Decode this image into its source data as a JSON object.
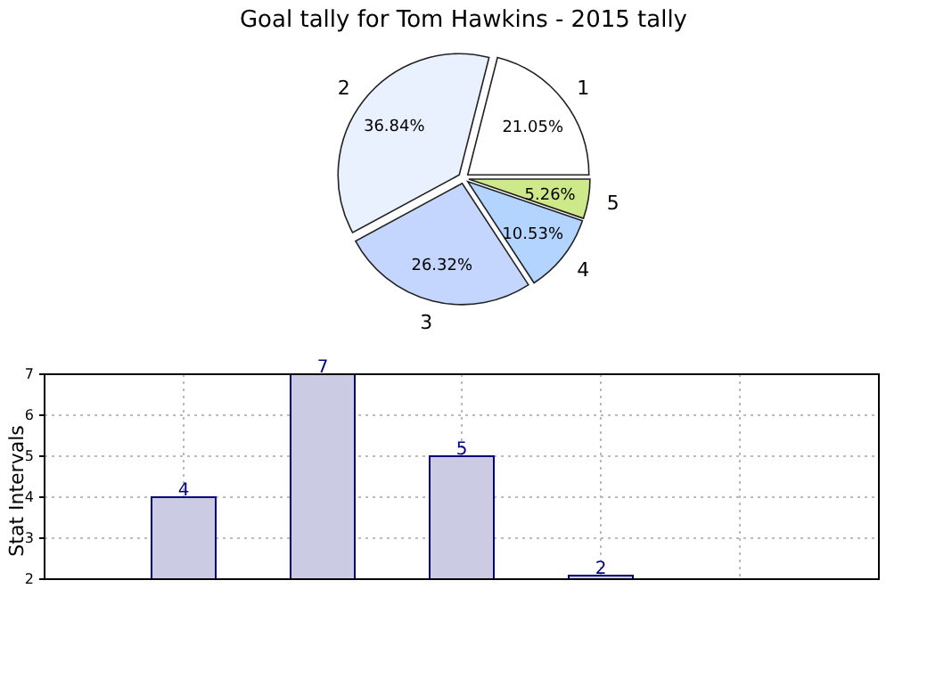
{
  "chart_data": [
    {
      "type": "pie",
      "title": "Goal tally for Tom Hawkins - 2015 tally",
      "categories": [
        "1",
        "2",
        "3",
        "4",
        "5"
      ],
      "values": [
        21.05,
        36.84,
        26.32,
        10.53,
        5.26
      ],
      "value_labels": [
        "21.05%",
        "36.84%",
        "26.32%",
        "10.53%",
        "5.26%"
      ],
      "colors": [
        "#ffffff",
        "#eaf1fe",
        "#c4d6fe",
        "#b3d4fe",
        "#cde98a"
      ]
    },
    {
      "type": "bar",
      "categories": [
        null,
        null,
        null,
        null,
        null
      ],
      "values": [
        4,
        7,
        5,
        2,
        null
      ],
      "color": "#cbcbe3",
      "ylabel": "Stat Intervals",
      "ylim": [
        2,
        7
      ],
      "yticks": [
        2,
        3,
        4,
        5,
        6,
        7
      ],
      "grid": true,
      "data_labels": true,
      "tick_labels": "y"
    }
  ]
}
